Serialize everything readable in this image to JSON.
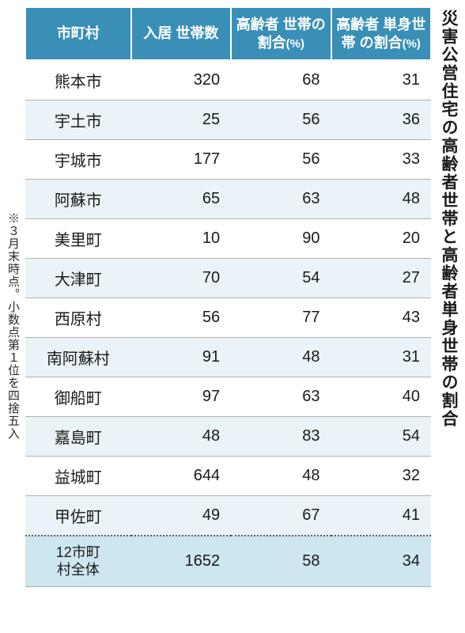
{
  "title": "災害公営住宅の高齢者世帯と高齢者単身世帯の割合",
  "footnote": "※３月末時点。小数点第１位を四捨五入",
  "table": {
    "columns": [
      "市町村",
      "入居\n世帯数",
      "高齢者\n世帯の\n割合",
      "高齢者\n単身世帯\nの割合"
    ],
    "pct_suffix": "(%)",
    "rows": [
      {
        "name": "熊本市",
        "households": 320,
        "elderly_pct": 68,
        "single_pct": 31
      },
      {
        "name": "宇土市",
        "households": 25,
        "elderly_pct": 56,
        "single_pct": 36
      },
      {
        "name": "宇城市",
        "households": 177,
        "elderly_pct": 56,
        "single_pct": 33
      },
      {
        "name": "阿蘇市",
        "households": 65,
        "elderly_pct": 63,
        "single_pct": 48
      },
      {
        "name": "美里町",
        "households": 10,
        "elderly_pct": 90,
        "single_pct": 20
      },
      {
        "name": "大津町",
        "households": 70,
        "elderly_pct": 54,
        "single_pct": 27
      },
      {
        "name": "西原村",
        "households": 56,
        "elderly_pct": 77,
        "single_pct": 43
      },
      {
        "name": "南阿蘇村",
        "households": 91,
        "elderly_pct": 48,
        "single_pct": 31
      },
      {
        "name": "御船町",
        "households": 97,
        "elderly_pct": 63,
        "single_pct": 40
      },
      {
        "name": "嘉島町",
        "households": 48,
        "elderly_pct": 83,
        "single_pct": 54
      },
      {
        "name": "益城町",
        "households": 644,
        "elderly_pct": 48,
        "single_pct": 32
      },
      {
        "name": "甲佐町",
        "households": 49,
        "elderly_pct": 67,
        "single_pct": 41
      }
    ],
    "total": {
      "name": "12市町\n村全体",
      "households": 1652,
      "elderly_pct": 58,
      "single_pct": 34
    },
    "colors": {
      "header_bg": "#3a8fb7",
      "header_fg": "#ffffff",
      "alt_row_bg": "#eaf3f7",
      "total_bg": "#cde6ef",
      "border": "#b0b0b0",
      "text": "#1a1a1a"
    }
  }
}
